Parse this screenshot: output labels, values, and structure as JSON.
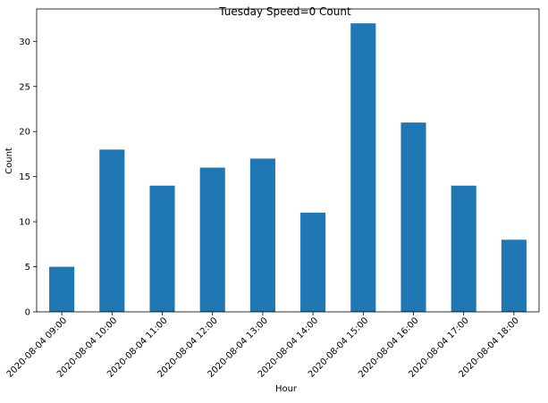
{
  "chart_data": {
    "type": "bar",
    "title": "Tuesday Speed=0 Count",
    "xlabel": "Hour",
    "ylabel": "Count",
    "categories": [
      "2020-08-04 09:00",
      "2020-08-04 10:00",
      "2020-08-04 11:00",
      "2020-08-04 12:00",
      "2020-08-04 13:00",
      "2020-08-04 14:00",
      "2020-08-04 15:00",
      "2020-08-04 16:00",
      "2020-08-04 17:00",
      "2020-08-04 18:00"
    ],
    "values": [
      5,
      18,
      14,
      16,
      17,
      11,
      32,
      21,
      14,
      8
    ],
    "ylim": [
      0,
      33.6
    ],
    "yticks": [
      0,
      5,
      10,
      15,
      20,
      25,
      30
    ],
    "bar_color": "#1f77b4",
    "grid": false,
    "legend": "none"
  }
}
